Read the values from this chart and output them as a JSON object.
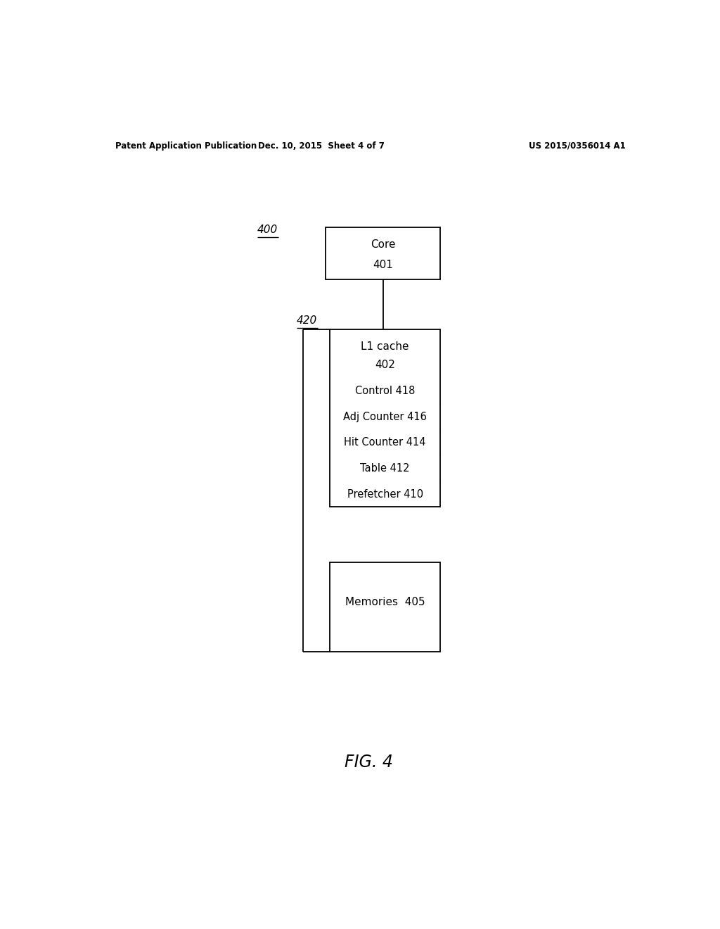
{
  "bg_color": "#ffffff",
  "fig_width": 10.24,
  "fig_height": 13.2,
  "header_left": "Patent Application Publication",
  "header_mid": "Dec. 10, 2015  Sheet 4 of 7",
  "header_right": "US 2015/0356014 A1",
  "fig_label": "FIG. 4",
  "label_400": "400",
  "label_420": "420",
  "core_label": "Core",
  "core_num": "401",
  "l1_label": "L1 cache",
  "l1_num": "402",
  "rows": [
    [
      "Prefetcher ",
      "410"
    ],
    [
      "Table ",
      "412"
    ],
    [
      "Hit Counter ",
      "414"
    ],
    [
      "Adj Counter ",
      "416"
    ],
    [
      "Control ",
      "418"
    ]
  ],
  "mem_label": "Memories  ",
  "mem_num": "405"
}
